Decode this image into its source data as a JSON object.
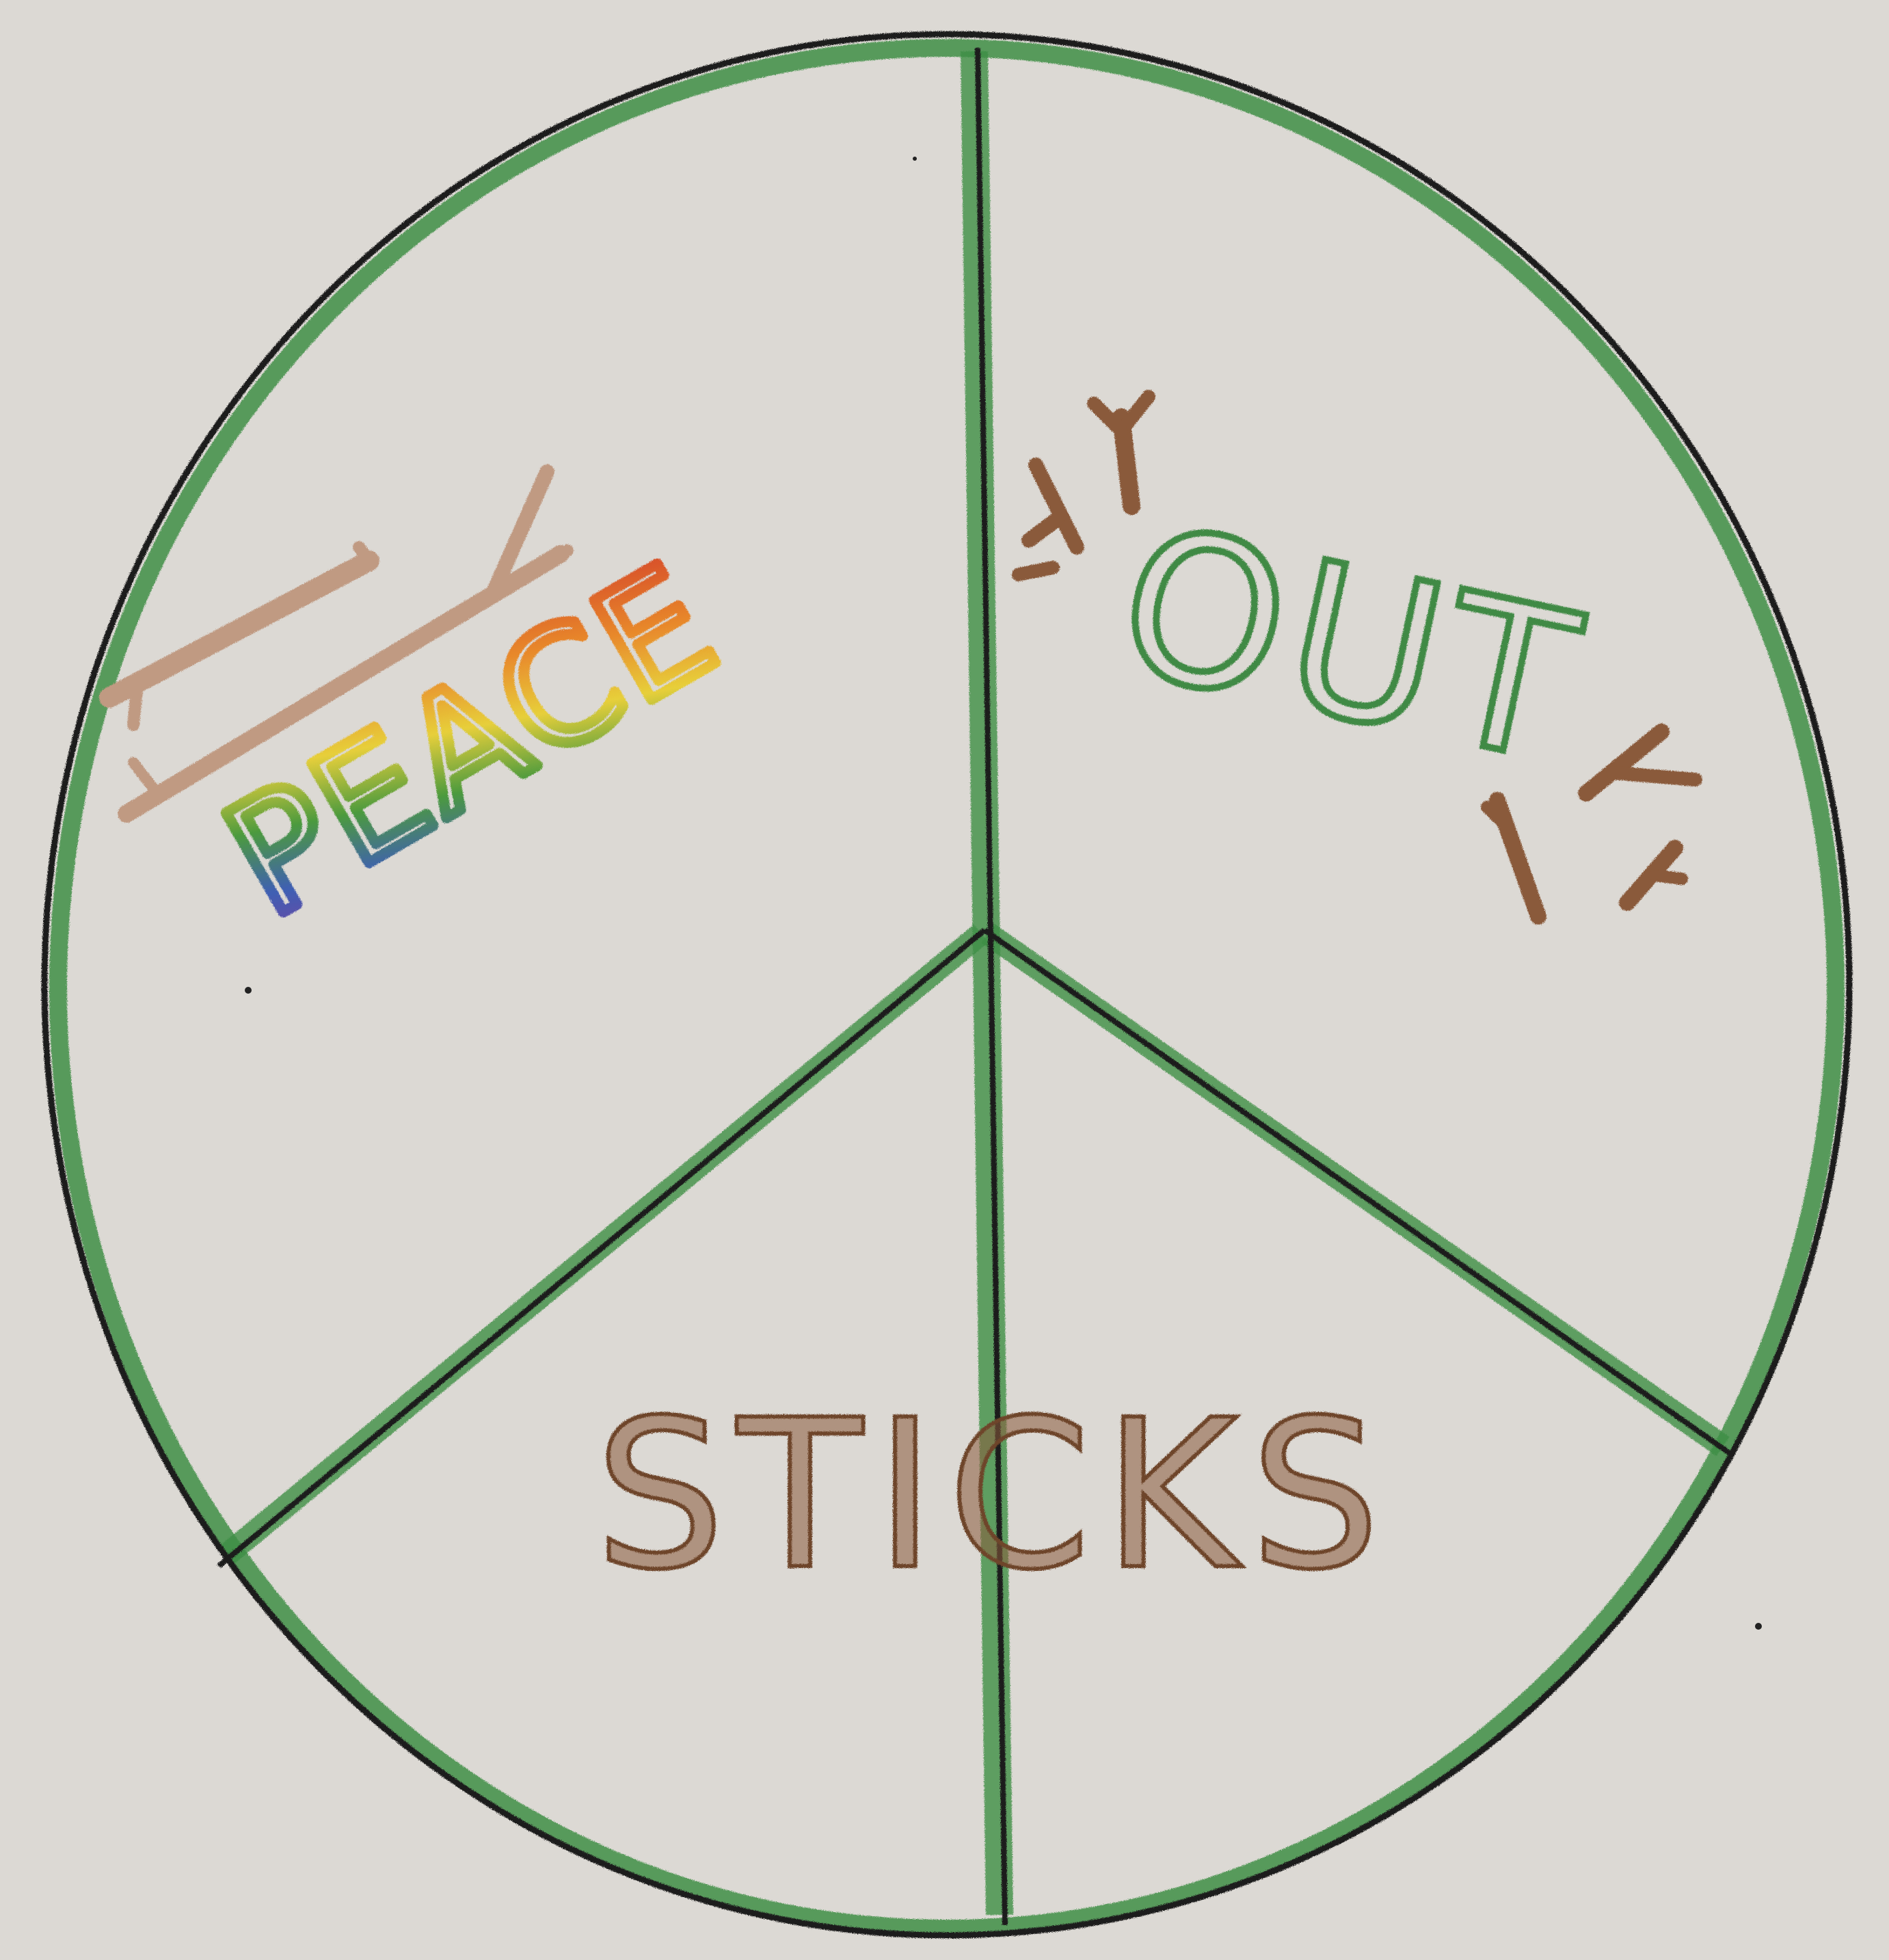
{
  "drawing": {
    "words": {
      "peace": "PEACE",
      "out": "OUT",
      "sticks": "STICKS"
    },
    "colors": {
      "paper": "#dcd9d4",
      "circle_outline": "#1c1c1c",
      "green_pencil": "#3f8f46",
      "stick_brown": "#8a5a3a",
      "light_stick_brown": "#c09a82",
      "out_green": "#3f8a44",
      "rainbow": [
        "#d23c2c",
        "#e8892c",
        "#e7cf3a",
        "#4c9a3e",
        "#3f5fb3",
        "#7b3fa0"
      ]
    }
  }
}
